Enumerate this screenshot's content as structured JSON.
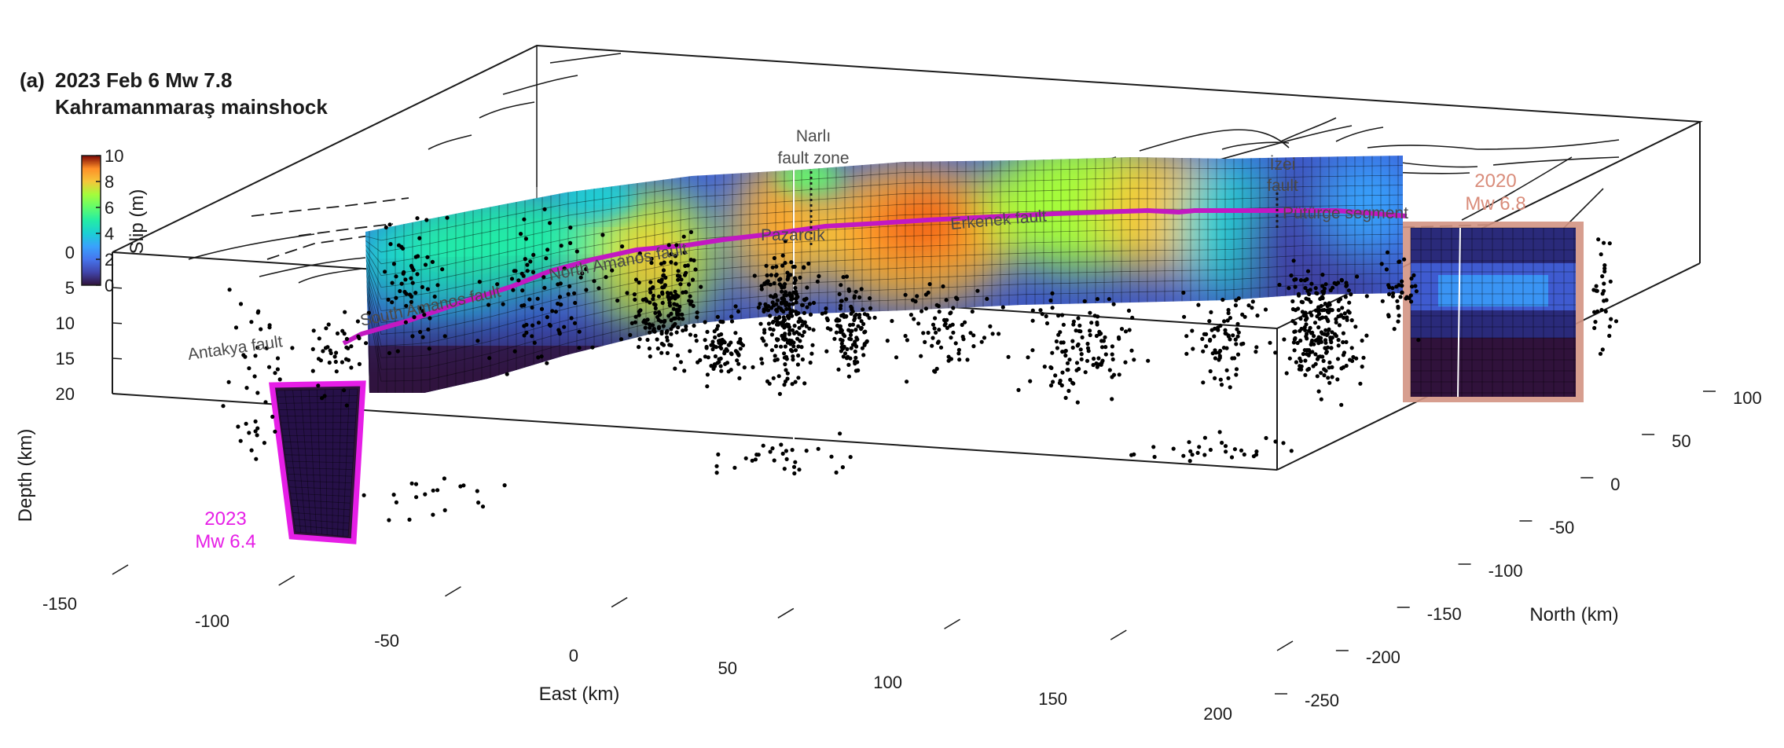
{
  "panel": {
    "label": "(a)",
    "title_line1": "2023 Feb 6 Mw 7.8",
    "title_line2": "Kahramanmaraş mainshock"
  },
  "chart_data": {
    "type": "3d-fault-slip",
    "colorbar": {
      "label": "Slip (m)",
      "range": [
        0,
        10
      ],
      "ticks": [
        0,
        2,
        4,
        6,
        8,
        10
      ],
      "colormap": "turbo"
    },
    "axes": {
      "depth": {
        "label": "Depth (km)",
        "range": [
          0,
          20
        ],
        "ticks": [
          0,
          5,
          10,
          15,
          20
        ]
      },
      "east": {
        "label": "East (km)",
        "range": [
          -150,
          200
        ],
        "ticks": [
          -150,
          -100,
          -50,
          0,
          50,
          100,
          150,
          200
        ]
      },
      "north": {
        "label": "North (km)",
        "range": [
          -250,
          100
        ],
        "ticks": [
          -250,
          -200,
          -150,
          -100,
          -50,
          0,
          50,
          100
        ]
      }
    },
    "fault_labels": [
      "Antakya fault",
      "South Amanos fault",
      "North Amanos fault",
      "Pazarcık",
      "Narlı",
      "fault zone",
      "Erkenek fault",
      "İzei",
      "fault",
      "Pütürge segment"
    ],
    "annotations": {
      "event_2023": {
        "line1": "2023",
        "line2": "Mw 6.4",
        "color": "#e61ee6"
      },
      "event_2020": {
        "line1": "2020",
        "line2": "Mw 6.8",
        "color": "#d98c7a"
      }
    },
    "colors": {
      "rupture_trace": "#c218c2",
      "event_2023_outline": "#e61ee6",
      "event_2020_outline": "#d39483",
      "box": "#1a1a1a",
      "aftershocks": "#000000"
    }
  }
}
